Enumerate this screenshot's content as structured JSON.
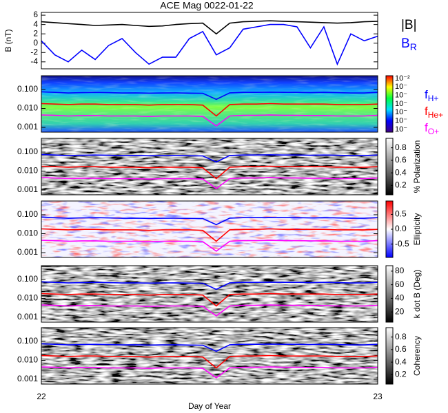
{
  "chart_data": [
    {
      "type": "line",
      "title": "ACE Mag 0022-01-22",
      "ylabel": "B (nT)",
      "x": [
        22.0,
        22.04,
        22.08,
        22.12,
        22.16,
        22.2,
        22.24,
        22.28,
        22.32,
        22.36,
        22.4,
        22.44,
        22.48,
        22.52,
        22.56,
        22.6,
        22.64,
        22.68,
        22.72,
        22.76,
        22.8,
        22.84,
        22.88,
        22.92,
        22.96,
        23.0
      ],
      "xlim": [
        22,
        23
      ],
      "ylim": [
        -5.5,
        6.6
      ],
      "yticks": [
        -4,
        -2,
        0,
        2,
        4,
        6
      ],
      "series": [
        {
          "name": "|B|",
          "color": "#000000",
          "values": [
            4.6,
            4.4,
            4.2,
            4.0,
            3.8,
            3.9,
            4.0,
            3.8,
            3.6,
            3.7,
            4.0,
            4.2,
            4.3,
            2.0,
            4.3,
            4.6,
            4.7,
            4.8,
            4.7,
            4.6,
            4.5,
            4.4,
            4.3,
            4.4,
            4.6,
            4.7
          ]
        },
        {
          "name": "B",
          "subscript": "R",
          "color": "#0000ff",
          "values": [
            0.5,
            -2.5,
            -4.0,
            -1.5,
            -3.5,
            -0.5,
            1.0,
            -2.0,
            -4.5,
            -3.0,
            -3.0,
            1.0,
            2.5,
            -2.5,
            -1.0,
            3.0,
            3.5,
            4.0,
            4.0,
            3.5,
            -1.0,
            3.5,
            -4.5,
            2.0,
            0.5,
            1.5
          ]
        }
      ]
    },
    {
      "type": "spectrogram",
      "xlabel": "Day of Year",
      "x": [
        22.0,
        22.04,
        22.08,
        22.12,
        22.16,
        22.2,
        22.24,
        22.28,
        22.32,
        22.36,
        22.4,
        22.44,
        22.48,
        22.52,
        22.56,
        22.6,
        22.64,
        22.68,
        22.72,
        22.76,
        22.8,
        22.84,
        22.88,
        22.92,
        22.96,
        23.0
      ],
      "xlim": [
        22,
        23
      ],
      "xticks": [
        22,
        23
      ],
      "log_y": true,
      "ylim": [
        0.00056,
        0.53
      ],
      "yticks": [
        0.001,
        {
          "value": 0.01,
          "label": "0.010"
        },
        {
          "value": 0.1,
          "label": "0.100"
        }
      ],
      "series": [
        {
          "name": "f",
          "subscript": "H+",
          "color": "#0000ff",
          "values": [
            0.075,
            0.07,
            0.065,
            0.068,
            0.07,
            0.068,
            0.065,
            0.066,
            0.064,
            0.065,
            0.066,
            0.064,
            0.063,
            0.03,
            0.066,
            0.07,
            0.07,
            0.072,
            0.07,
            0.07,
            0.068,
            0.07,
            0.068,
            0.065,
            0.065,
            0.07
          ]
        },
        {
          "name": "f",
          "subscript": "He+",
          "color": "#ff0000",
          "values": [
            0.018,
            0.017,
            0.016,
            0.017,
            0.017,
            0.016,
            0.016,
            0.016,
            0.015,
            0.016,
            0.016,
            0.016,
            0.015,
            0.004,
            0.016,
            0.017,
            0.017,
            0.018,
            0.017,
            0.017,
            0.017,
            0.017,
            0.016,
            0.016,
            0.016,
            0.017
          ]
        },
        {
          "name": "f",
          "subscript": "O+",
          "color": "#ff00ff",
          "values": [
            0.0045,
            0.0043,
            0.004,
            0.0042,
            0.0042,
            0.004,
            0.004,
            0.004,
            0.0038,
            0.004,
            0.004,
            0.004,
            0.0038,
            0.0012,
            0.004,
            0.0043,
            0.0043,
            0.0045,
            0.0043,
            0.0043,
            0.0042,
            0.0042,
            0.004,
            0.004,
            0.004,
            0.0043
          ]
        }
      ],
      "panels": [
        {
          "colormap": "rainbow",
          "colorbar_labels": [
            "10⁻²",
            "10⁻",
            "10⁻",
            "10⁻",
            "10⁻",
            "10⁻",
            "10⁻"
          ]
        },
        {
          "colormap": "gray",
          "label": "% Polarization",
          "clim": [
            0.05,
            0.95
          ],
          "cticks": [
            0.2,
            0.4,
            0.6,
            0.8
          ]
        },
        {
          "colormap": "redblue",
          "label": "Ellipticity",
          "clim": [
            -0.95,
            0.95
          ],
          "cticks": [
            -0.5,
            {
              "value": 0,
              "label": "0.0"
            },
            0.5
          ]
        },
        {
          "colormap": "gray",
          "label": "k dot B (Deg)",
          "clim": [
            5,
            88
          ],
          "cticks": [
            20,
            40,
            60,
            80
          ]
        },
        {
          "colormap": "gray",
          "label": "Coherency",
          "clim": [
            0.05,
            0.95
          ],
          "cticks": [
            0.2,
            0.4,
            0.6,
            0.8
          ]
        }
      ]
    }
  ]
}
